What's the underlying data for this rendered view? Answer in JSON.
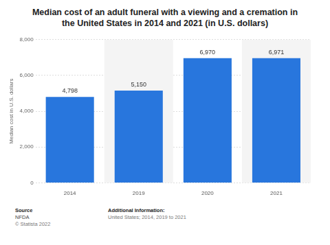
{
  "chart_data": {
    "type": "bar",
    "title": "Median cost of an adult funeral with a viewing and a cremation in the United States in 2014 and 2021 (in U.S. dollars)",
    "y_label": "Median cost in U.S. dollars",
    "categories": [
      "2014",
      "2019",
      "2020",
      "2021"
    ],
    "values": [
      4798,
      5150,
      6970,
      6971
    ],
    "value_labels": [
      "4,798",
      "5,150",
      "6,970",
      "6,971"
    ],
    "data_labels": true,
    "color": "#2876dd",
    "ylim": [
      0,
      8000
    ],
    "yticks": [
      0,
      {
        "value": 2000,
        "label": "2,000"
      },
      {
        "value": 4000,
        "label": "4,000"
      },
      {
        "value": 6000,
        "label": "6,000"
      },
      {
        "value": 8000,
        "label": "8,000"
      }
    ],
    "grid": true
  },
  "footer": {
    "source_heading": "Source",
    "source": "NFDA",
    "copyright": "© Statista 2022",
    "info_heading": "Additional Information:",
    "info": "United States; 2014, 2019 to 2021"
  }
}
